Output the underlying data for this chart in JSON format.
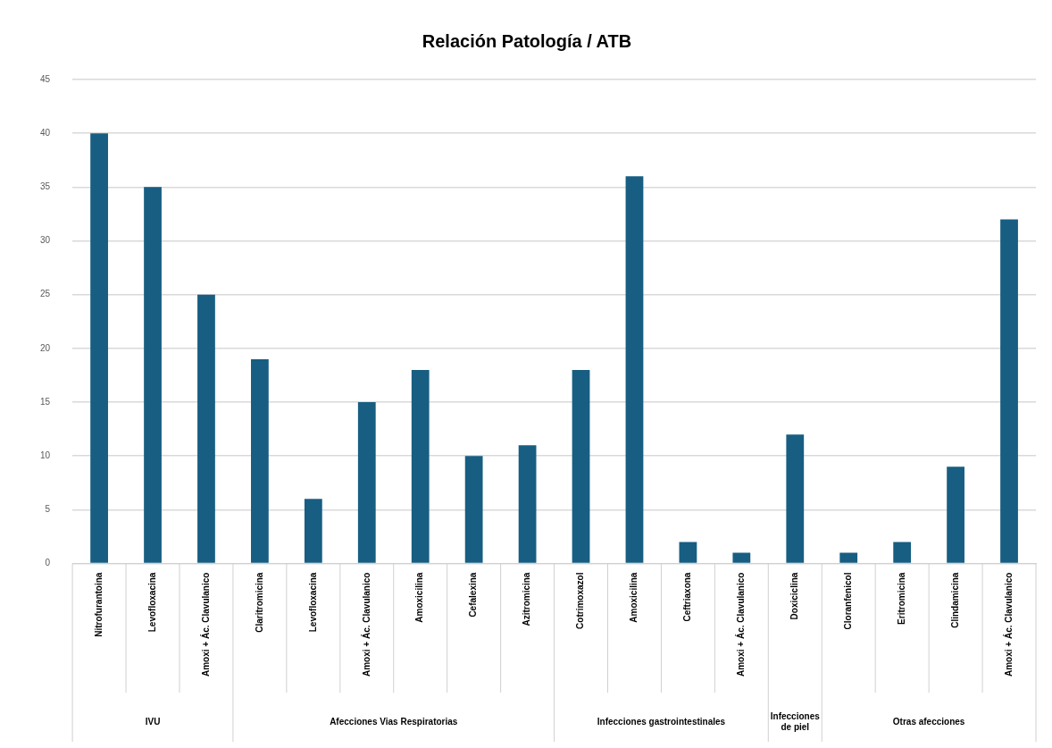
{
  "chart_data": {
    "type": "bar",
    "title": "Relación Patología / ATB",
    "categories": [
      "Nitrofurantoina",
      "Levofloxacina",
      "Amoxi + Ác. Clavulanico",
      "Claritromicina",
      "Levofloxacina",
      "Amoxi + Ác. Clavulanico",
      "Amoxicilina",
      "Cefalexina",
      "Azitromicina",
      "Cotrimoxazol",
      "Amoxicilina",
      "Ceftriaxona",
      "Amoxi + Ác. Clavulanico",
      "Doxiciclina",
      "Cloranfenicol",
      "Eritromicina",
      "Clindamicina",
      "Amoxi + Ác. Clavulanico"
    ],
    "values": [
      40,
      35,
      25,
      19,
      6,
      15,
      18,
      10,
      11,
      18,
      36,
      2,
      1,
      12,
      1,
      2,
      9,
      32
    ],
    "color": "#175e82",
    "ylim": [
      0,
      45
    ],
    "yticks": [
      0,
      5,
      10,
      15,
      20,
      25,
      30,
      35,
      40,
      45
    ],
    "grid": "y",
    "legend": false,
    "annotations": [
      "IVU",
      "Afecciones Vias Respiratorias",
      "Infecciones gastrointestinales",
      "Infecciones de piel",
      "Otras afecciones"
    ]
  }
}
